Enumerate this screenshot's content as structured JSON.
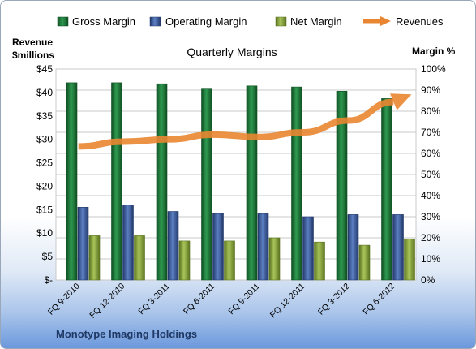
{
  "chart_data": {
    "type": "bar",
    "title": "Quarterly Margins",
    "categories": [
      "FQ 9-2010",
      "FQ 12-2010",
      "FQ 3-2011",
      "FQ 6-2011",
      "FQ 9-2011",
      "FQ 12-2011",
      "FQ 3-2012",
      "FQ 6-2012"
    ],
    "series": [
      {
        "name": "Gross Margin",
        "axis": "right",
        "color": "#1e7a3c",
        "values": [
          93.5,
          93.5,
          93,
          90.5,
          92,
          91.5,
          89.5,
          86
        ]
      },
      {
        "name": "Operating Margin",
        "axis": "right",
        "color": "#3c5d9e",
        "values": [
          34.5,
          35.5,
          32.5,
          31.5,
          31.5,
          30,
          31,
          31
        ]
      },
      {
        "name": "Net Margin",
        "axis": "right",
        "color": "#8aa63a",
        "values": [
          21,
          21,
          18.5,
          18.5,
          20,
          18,
          16.5,
          19.5
        ]
      },
      {
        "name": "Revenues",
        "axis": "left",
        "type": "line-arrow",
        "color": "#e98631",
        "values": [
          28.5,
          29.5,
          30,
          31,
          30.5,
          31.5,
          34,
          38
        ]
      }
    ],
    "left_axis": {
      "label_line1": "Revenue",
      "label_line2": "$millions",
      "range": [
        0,
        45
      ],
      "ticks": [
        "$-",
        "$5",
        "$10",
        "$15",
        "$20",
        "$25",
        "$30",
        "$35",
        "$40",
        "$45"
      ]
    },
    "right_axis": {
      "label": "Margin %",
      "range": [
        0,
        100
      ],
      "ticks": [
        "0%",
        "10%",
        "20%",
        "30%",
        "40%",
        "50%",
        "60%",
        "70%",
        "80%",
        "90%",
        "100%"
      ]
    },
    "legend_position": "top",
    "grid": true
  },
  "footer": {
    "company": "Monotype Imaging Holdings"
  }
}
